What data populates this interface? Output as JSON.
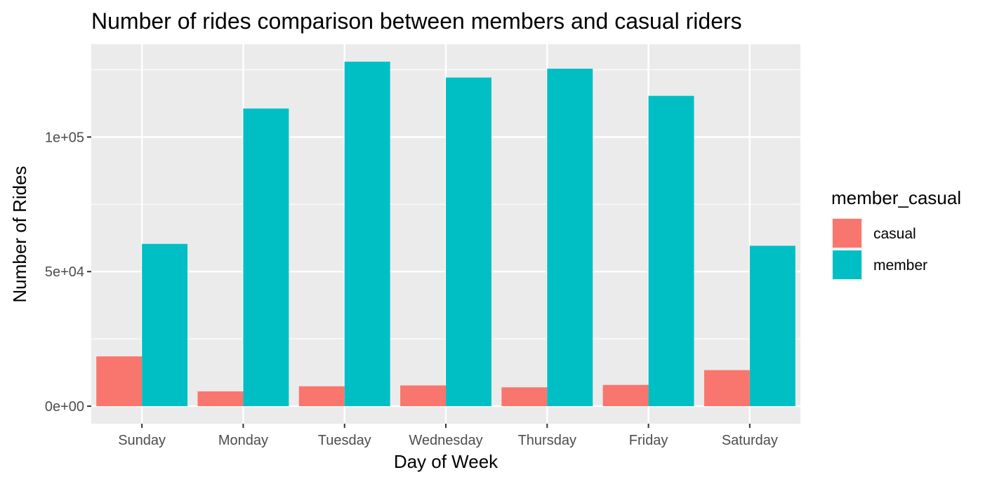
{
  "chart_data": {
    "type": "bar",
    "title": "Number of rides comparison between members and casual riders",
    "xlabel": "Day of Week",
    "ylabel": "Number of Rides",
    "categories": [
      "Sunday",
      "Monday",
      "Tuesday",
      "Wednesday",
      "Thursday",
      "Friday",
      "Saturday"
    ],
    "series": [
      {
        "name": "casual",
        "color": "#F8766D",
        "values": [
          18500,
          5500,
          7400,
          7700,
          7000,
          7900,
          13400
        ]
      },
      {
        "name": "member",
        "color": "#00BFC4",
        "values": [
          60300,
          110600,
          128000,
          122100,
          125400,
          115300,
          59600
        ]
      }
    ],
    "ylim": [
      -6500,
      134500
    ],
    "yticks": [
      0,
      50000,
      100000
    ],
    "ytick_labels": [
      "0e+00",
      "5e+04",
      "1e+05"
    ],
    "grid": true,
    "panel_background": "#EBEBEB",
    "legend": {
      "title": "member_casual",
      "position": "right"
    }
  }
}
